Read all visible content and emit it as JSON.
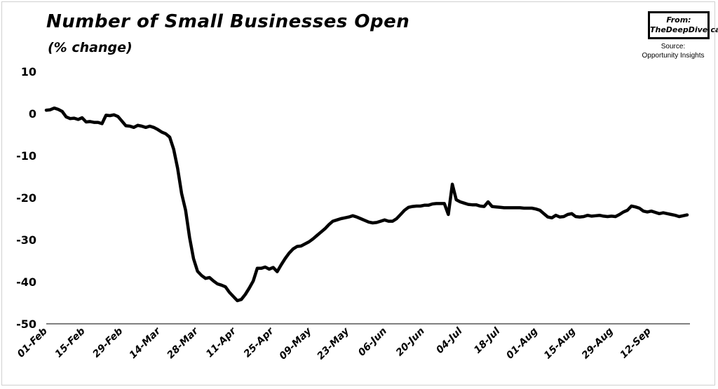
{
  "header": {
    "title": "Number of Small Businesses Open",
    "subtitle": "(% change)"
  },
  "badge": {
    "line1": "From:",
    "line2": "TheDeepDive.ca"
  },
  "source": {
    "label": "Source:",
    "name": "Opportunity Insights"
  },
  "chart_data": {
    "type": "line",
    "title": "Number of Small Businesses Open",
    "subtitle": "(% change)",
    "xlabel": "",
    "ylabel": "",
    "ylim": [
      -50,
      10
    ],
    "yticks": [
      10,
      0,
      -10,
      -20,
      -30,
      -40,
      -50
    ],
    "xtick_labels": [
      "01-Feb",
      "15-Feb",
      "29-Feb",
      "14-Mar",
      "28-Mar",
      "11-Apr",
      "25-Apr",
      "09-May",
      "23-May",
      "06-Jun",
      "20-Jun",
      "04-Jul",
      "18-Jul",
      "01-Aug",
      "15-Aug",
      "29-Aug",
      "12-Sep"
    ],
    "grid": false,
    "legend": "none",
    "line_color": "#000000",
    "series": [
      {
        "values": [
          0.8,
          0.9,
          1.3,
          1.0,
          0.5,
          -0.8,
          -1.2,
          -1.1,
          -1.4,
          -1.0,
          -2.0,
          -1.9,
          -2.1,
          -2.1,
          -2.4,
          -0.4,
          -0.5,
          -0.3,
          -0.7,
          -1.8,
          -2.9,
          -3.0,
          -3.3,
          -2.8,
          -3.0,
          -3.3,
          -3.0,
          -3.3,
          -3.8,
          -4.4,
          -4.8,
          -5.6,
          -8.5,
          -13.0,
          -19.0,
          -23.0,
          -29.5,
          -34.5,
          -37.5,
          -38.5,
          -39.2,
          -39.0,
          -39.8,
          -40.5,
          -40.8,
          -41.2,
          -42.5,
          -43.5,
          -44.5,
          -44.2,
          -43.0,
          -41.5,
          -39.8,
          -36.8,
          -36.8,
          -36.5,
          -37.0,
          -36.6,
          -37.6,
          -36.0,
          -34.5,
          -33.2,
          -32.2,
          -31.6,
          -31.5,
          -31.0,
          -30.5,
          -29.8,
          -29.0,
          -28.2,
          -27.4,
          -26.4,
          -25.6,
          -25.3,
          -25.0,
          -24.8,
          -24.6,
          -24.3,
          -24.6,
          -25.0,
          -25.4,
          -25.8,
          -26.0,
          -25.9,
          -25.6,
          -25.3,
          -25.6,
          -25.6,
          -25.0,
          -24.0,
          -23.0,
          -22.3,
          -22.1,
          -22.0,
          -22.0,
          -21.8,
          -21.8,
          -21.5,
          -21.4,
          -21.4,
          -21.4,
          -24.0,
          -16.8,
          -20.5,
          -21.0,
          -21.3,
          -21.6,
          -21.7,
          -21.7,
          -22.0,
          -22.1,
          -21.0,
          -22.1,
          -22.2,
          -22.3,
          -22.4,
          -22.4,
          -22.4,
          -22.4,
          -22.4,
          -22.5,
          -22.5,
          -22.5,
          -22.7,
          -23.0,
          -23.8,
          -24.6,
          -24.8,
          -24.2,
          -24.6,
          -24.5,
          -24.0,
          -23.8,
          -24.5,
          -24.6,
          -24.5,
          -24.2,
          -24.4,
          -24.3,
          -24.2,
          -24.4,
          -24.5,
          -24.4,
          -24.5,
          -24.0,
          -23.4,
          -23.0,
          -22.0,
          -22.2,
          -22.5,
          -23.2,
          -23.4,
          -23.2,
          -23.5,
          -23.8,
          -23.6,
          -23.8,
          -24.0,
          -24.2,
          -24.5,
          -24.3,
          -24.1
        ]
      }
    ]
  }
}
